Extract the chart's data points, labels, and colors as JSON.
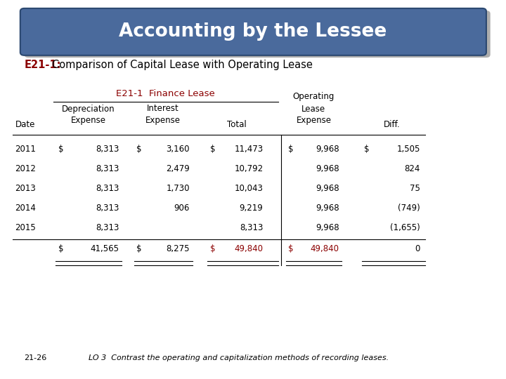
{
  "title": "Accounting by the Lessee",
  "title_bg": "#4A6A9C",
  "title_fg": "#FFFFFF",
  "subtitle_bold": "E21-1:",
  "subtitle_rest": "  Comparison of Capital Lease with Operating Lease",
  "finance_label": "E21-1  Finance Lease",
  "finance_color": "#8B0000",
  "total_color": "#8B0000",
  "bg_color": "#FFFFFF",
  "footer_num": "21-26",
  "footer_text": "LO 3  Contrast the operating and capitalization methods of recording leases.",
  "col_x": {
    "date": 0.03,
    "dep_s": 0.115,
    "dep_v": 0.235,
    "int_s": 0.27,
    "int_v": 0.375,
    "tot_s": 0.415,
    "tot_v": 0.52,
    "op_s": 0.57,
    "op_v": 0.67,
    "dif_s": 0.72,
    "dif_v": 0.83
  },
  "data_rows": [
    [
      "2011",
      "$",
      "8,313",
      "$",
      "3,160",
      "$",
      "11,473",
      "$",
      "9,968",
      "$",
      "1,505"
    ],
    [
      "2012",
      "",
      "8,313",
      "",
      "2,479",
      "",
      "10,792",
      "",
      "9,968",
      "",
      "824"
    ],
    [
      "2013",
      "",
      "8,313",
      "",
      "1,730",
      "",
      "10,043",
      "",
      "9,968",
      "",
      "75"
    ],
    [
      "2014",
      "",
      "8,313",
      "",
      "906",
      "",
      "9,219",
      "",
      "9,968",
      "",
      "(749)"
    ],
    [
      "2015",
      "",
      "8,313",
      "",
      "",
      "",
      "8,313",
      "",
      "9,968",
      "",
      "(1,655)"
    ]
  ],
  "total_row": [
    "",
    "$",
    "41,565",
    "$",
    "8,275",
    "$",
    "49,840",
    "$",
    "49,840",
    "",
    "0"
  ]
}
